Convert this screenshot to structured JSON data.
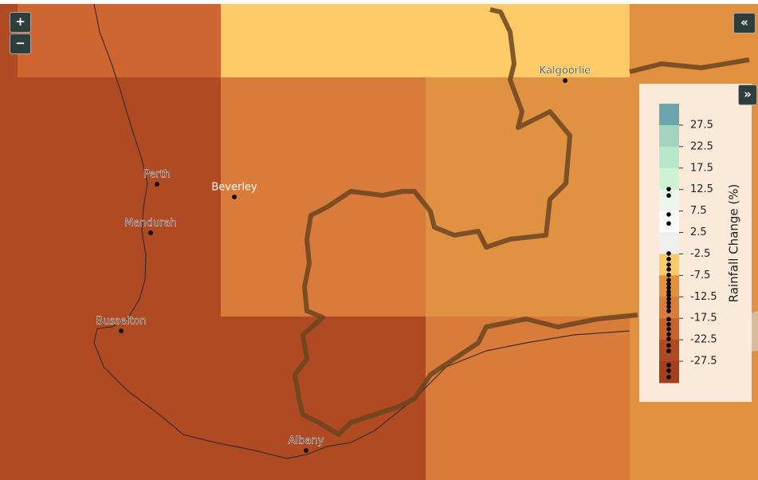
{
  "controls": {
    "zoom_in": "+",
    "zoom_out": "−",
    "collapse": "«",
    "expand": "»"
  },
  "places": [
    {
      "label": "Kalgoorlie"
    },
    {
      "label": "Perth"
    },
    {
      "label": "Beverley"
    },
    {
      "label": "Mandurah"
    },
    {
      "label": "Busselton"
    },
    {
      "label": "Albany"
    }
  ],
  "legend": {
    "title": "Rainfall Change (%)",
    "ticks": [
      27.5,
      22.5,
      17.5,
      12.5,
      7.5,
      2.5,
      -2.5,
      -7.5,
      -12.5,
      -17.5,
      -22.5,
      -27.5
    ],
    "ylim": [
      32.5,
      -32.5
    ],
    "points": [
      12.6,
      11.1,
      6.7,
      4.6,
      -2.4,
      -3.7,
      -5.0,
      -6.1,
      -7.4,
      -8.6,
      -9.5,
      -10.4,
      -11.3,
      -12.1,
      -13.0,
      -13.9,
      -14.8,
      -15.8,
      -17.7,
      -18.9,
      -20.0,
      -21.2,
      -22.3,
      -23.8,
      -25.1,
      -28.4,
      -29.7,
      -31.2
    ]
  }
}
